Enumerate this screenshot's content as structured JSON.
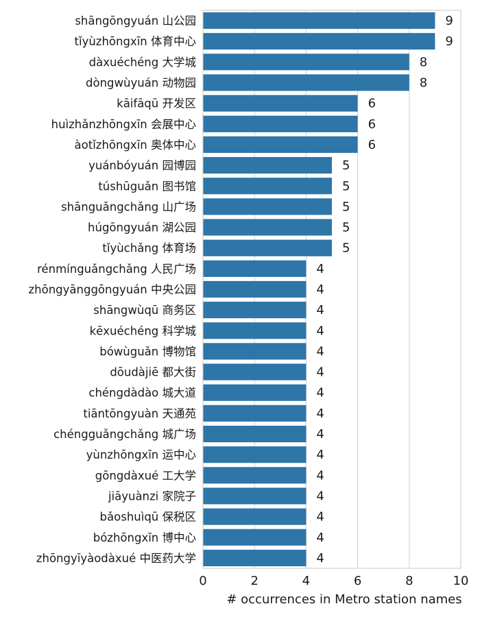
{
  "chart_data": {
    "type": "bar",
    "orientation": "horizontal",
    "categories": [
      "shāngōngyuán 山公园",
      "tǐyùzhōngxīn 体育中心",
      "dàxuéchéng 大学城",
      "dòngwùyuán 动物园",
      "kāifāqū 开发区",
      "huìzhǎnzhōngxīn 会展中心",
      "àotǐzhōngxīn 奥体中心",
      "yuánbóyuán 园博园",
      "túshūguǎn 图书馆",
      "shānguǎngchǎng 山广场",
      "húgōngyuán 湖公园",
      "tǐyùchǎng 体育场",
      "rénmínguǎngchǎng 人民广场",
      "zhōngyānggōngyuán 中央公园",
      "shāngwùqū 商务区",
      "kēxuéchéng 科学城",
      "bówùguǎn 博物馆",
      "dōudàjiē 都大街",
      "chéngdàdào 城大道",
      "tiāntōngyuàn 天通苑",
      "chéngguǎngchǎng 城广场",
      "yùnzhōngxīn 运中心",
      "gōngdàxué 工大学",
      "jiāyuànzi 家院子",
      "bǎoshuìqū 保税区",
      "bózhōngxīn 博中心",
      "zhōngyīyàodàxué 中医药大学"
    ],
    "values": [
      9,
      9,
      8,
      8,
      6,
      6,
      6,
      5,
      5,
      5,
      5,
      5,
      4,
      4,
      4,
      4,
      4,
      4,
      4,
      4,
      4,
      4,
      4,
      4,
      4,
      4,
      4
    ],
    "xlabel": "# occurrences in Metro station names",
    "ylabel": "",
    "title": "",
    "xlim": [
      0,
      10
    ],
    "xticks": [
      0,
      2,
      4,
      6,
      8,
      10
    ],
    "grid": "vertical",
    "legend": "none",
    "bar_color": "#2e75a8"
  }
}
